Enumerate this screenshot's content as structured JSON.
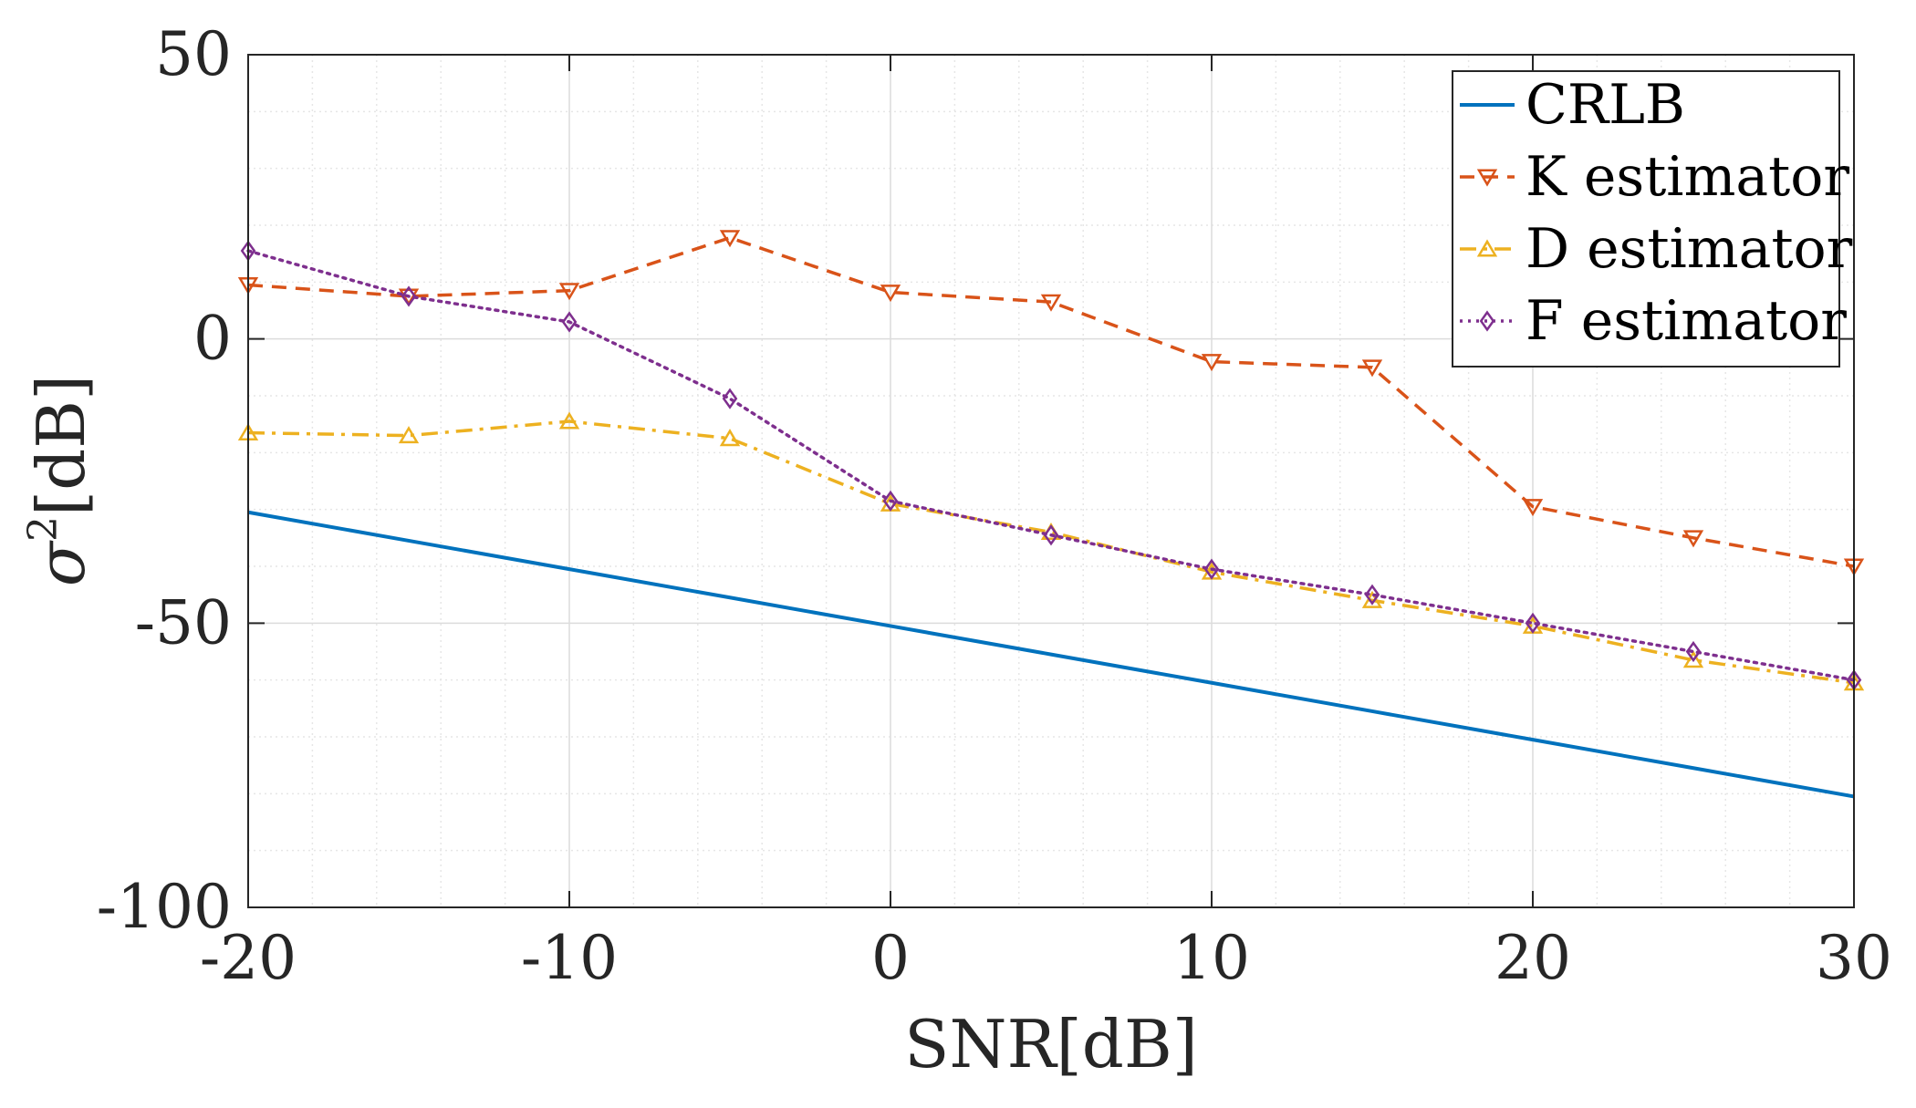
{
  "chart_data": {
    "type": "line",
    "title": "",
    "xlabel": "SNR[dB]",
    "ylabel": "σ²[dB]",
    "ylabel_base": "σ",
    "ylabel_sup": "2",
    "ylabel_unit": "[dB]",
    "xlim": [
      -20,
      30
    ],
    "ylim": [
      -100,
      50
    ],
    "xticks": [
      -20,
      -10,
      0,
      10,
      20,
      30
    ],
    "yticks": [
      -100,
      -50,
      0,
      50
    ],
    "xtick_labels": [
      "-20",
      "-10",
      "0",
      "10",
      "20",
      "30"
    ],
    "ytick_labels": [
      "-100",
      "-50",
      "0",
      "50"
    ],
    "grid": true,
    "minor_grid": true,
    "legend_position": "top-right",
    "x": [
      -20,
      -15,
      -10,
      -5,
      0,
      5,
      10,
      15,
      20,
      25,
      30
    ],
    "series": [
      {
        "name": "CRLB",
        "color": "#0072BD",
        "line_style": "solid",
        "marker": "none",
        "values": [
          -30.5,
          -35.5,
          -40.5,
          -45.5,
          -50.5,
          -55.5,
          -60.5,
          -65.5,
          -70.5,
          -75.5,
          -80.5
        ]
      },
      {
        "name": "K estimator",
        "color": "#D95319",
        "line_style": "dashed",
        "marker": "triangle-down",
        "values": [
          9.5,
          7.5,
          8.5,
          17.8,
          8.2,
          6.5,
          -4,
          -5,
          -29.5,
          -35,
          -40
        ]
      },
      {
        "name": "D estimator",
        "color": "#EDB120",
        "line_style": "dashdot",
        "marker": "triangle-up",
        "values": [
          -16.5,
          -17,
          -14.5,
          -17.5,
          -29,
          -34,
          -41,
          -46,
          -50.5,
          -56.5,
          -60.5
        ]
      },
      {
        "name": "F estimator",
        "color": "#7E2F8E",
        "line_style": "dotted",
        "marker": "diamond",
        "values": [
          15.5,
          7.5,
          3,
          -10.5,
          -28.5,
          -34.5,
          -40.5,
          -45,
          -50,
          -55,
          -60
        ]
      }
    ]
  }
}
